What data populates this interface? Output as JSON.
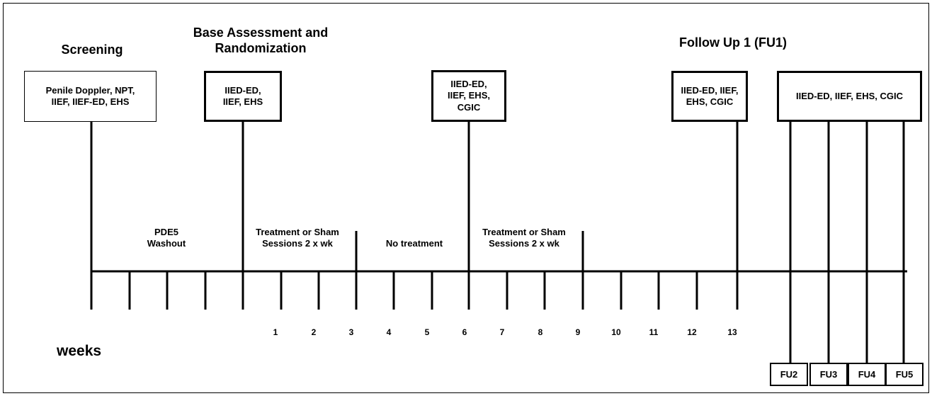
{
  "headers": {
    "screening": "Screening",
    "base": "Base Assessment and\nRandomization",
    "follow_up": "Follow Up 1 (FU1)"
  },
  "boxes": {
    "screening": "Penile Doppler, NPT,\nIIEF, IIEF-ED, EHS",
    "base": "IIED-ED,\nIIEF, EHS",
    "week6": "IIED-ED,\nIIEF, EHS,\nCGIC",
    "week13": "IIED-ED, IIEF,\nEHS, CGIC",
    "followups": "IIED-ED, IIEF, EHS, CGIC"
  },
  "phases": {
    "washout": "PDE5\nWashout",
    "treatment1": "Treatment or Sham\nSessions 2 x wk",
    "no_treatment": "No treatment",
    "treatment2": "Treatment or Sham\nSessions 2 x wk"
  },
  "axis_label": "weeks",
  "week_ticks": [
    "1",
    "2",
    "3",
    "4",
    "5",
    "6",
    "7",
    "8",
    "9",
    "10",
    "11",
    "12",
    "13"
  ],
  "followup_labels": [
    "FU2",
    "FU3",
    "FU4",
    "FU5"
  ]
}
